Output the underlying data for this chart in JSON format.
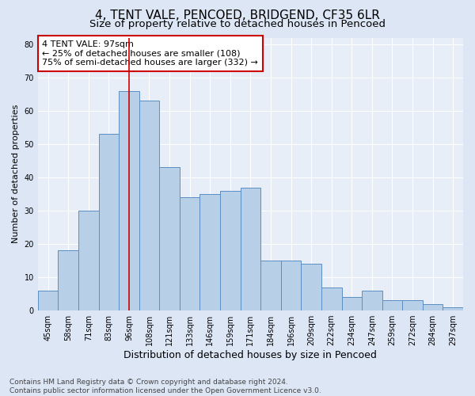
{
  "title": "4, TENT VALE, PENCOED, BRIDGEND, CF35 6LR",
  "subtitle": "Size of property relative to detached houses in Pencoed",
  "xlabel": "Distribution of detached houses by size in Pencoed",
  "ylabel": "Number of detached properties",
  "categories": [
    "45sqm",
    "58sqm",
    "71sqm",
    "83sqm",
    "96sqm",
    "108sqm",
    "121sqm",
    "133sqm",
    "146sqm",
    "159sqm",
    "171sqm",
    "184sqm",
    "196sqm",
    "209sqm",
    "222sqm",
    "234sqm",
    "247sqm",
    "259sqm",
    "272sqm",
    "284sqm",
    "297sqm"
  ],
  "bar_heights": [
    6,
    18,
    30,
    53,
    66,
    63,
    43,
    34,
    35,
    36,
    37,
    15,
    15,
    14,
    7,
    4,
    6,
    3,
    3,
    2,
    1
  ],
  "bar_color": "#b8cfe8",
  "bar_edge_color": "#5b8ec4",
  "property_line_color": "#cc0000",
  "annotation_text": "4 TENT VALE: 97sqm\n← 25% of detached houses are smaller (108)\n75% of semi-detached houses are larger (332) →",
  "annotation_box_color": "#ffffff",
  "annotation_box_edge": "#cc0000",
  "ylim": [
    0,
    82
  ],
  "yticks": [
    0,
    10,
    20,
    30,
    40,
    50,
    60,
    70,
    80
  ],
  "bg_color": "#dce6f5",
  "plot_bg_color": "#e8eef8",
  "footnote": "Contains HM Land Registry data © Crown copyright and database right 2024.\nContains public sector information licensed under the Open Government Licence v3.0.",
  "title_fontsize": 11,
  "subtitle_fontsize": 9.5,
  "xlabel_fontsize": 9,
  "ylabel_fontsize": 8,
  "tick_fontsize": 7,
  "annotation_fontsize": 8,
  "footnote_fontsize": 6.5
}
